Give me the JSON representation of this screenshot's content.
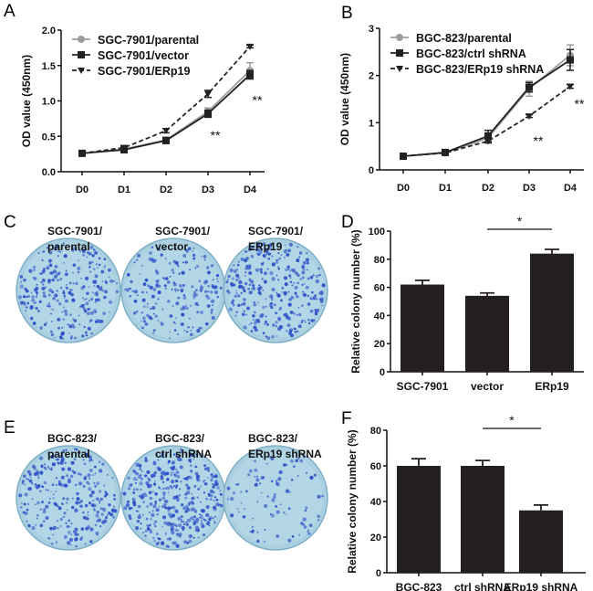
{
  "panels": {
    "a": "A",
    "b": "B",
    "c": "C",
    "d": "D",
    "e": "E",
    "f": "F"
  },
  "plates_c": [
    {
      "line1": "SGC-7901/",
      "line2": "parental"
    },
    {
      "line1": "SGC-7901/",
      "line2": "vector"
    },
    {
      "line1": "SGC-7901/",
      "line2": "ERp19"
    }
  ],
  "plates_e": [
    {
      "line1": "BGC-823/",
      "line2": "parental"
    },
    {
      "line1": "BGC-823/",
      "line2": "ctrl shRNA"
    },
    {
      "line1": "BGC-823/",
      "line2": "ERp19 shRNA"
    }
  ],
  "colors": {
    "bar": "#231f20",
    "gray": "#9d9d9d",
    "black": "#222222",
    "plate": "#a9cfe0",
    "colony": "#2f52c8"
  },
  "chart_data": [
    {
      "type": "line",
      "panel": "A",
      "ylabel": "OD value (450nm)",
      "ylim": [
        0,
        2.0
      ],
      "yticks": [
        "0.0",
        "0.5",
        "1.0",
        "1.5",
        "2.0"
      ],
      "categories": [
        "D0",
        "D1",
        "D2",
        "D3",
        "D4"
      ],
      "legend": "top-left",
      "grid": false,
      "series": [
        {
          "name": "SGC-7901/parental",
          "values": [
            0.26,
            0.32,
            0.45,
            0.85,
            1.43
          ],
          "err": [
            0.02,
            0.03,
            0.04,
            0.05,
            0.11
          ],
          "style": "gray-circle"
        },
        {
          "name": "SGC-7901/vector",
          "values": [
            0.26,
            0.31,
            0.44,
            0.82,
            1.37
          ],
          "err": [
            0.02,
            0.03,
            0.04,
            0.05,
            0.06
          ],
          "style": "black-square"
        },
        {
          "name": "SGC-7901/ERp19",
          "values": [
            0.26,
            0.34,
            0.58,
            1.1,
            1.77
          ],
          "err": [
            0.02,
            0.03,
            0.03,
            0.05,
            0.02
          ],
          "style": "dashed-triangle"
        }
      ],
      "annotations": [
        {
          "text": "**",
          "at": "D3"
        },
        {
          "text": "**",
          "at": "D4"
        }
      ]
    },
    {
      "type": "line",
      "panel": "B",
      "ylabel": "OD value (450nm)",
      "ylim": [
        0,
        3
      ],
      "yticks": [
        "0",
        "1",
        "2",
        "3"
      ],
      "categories": [
        "D0",
        "D1",
        "D2",
        "D3",
        "D4"
      ],
      "legend": "top-left",
      "grid": false,
      "series": [
        {
          "name": "BGC-823/parental",
          "values": [
            0.29,
            0.36,
            0.68,
            1.72,
            2.43
          ],
          "err": [
            0.02,
            0.03,
            0.08,
            0.16,
            0.22
          ],
          "style": "gray-circle"
        },
        {
          "name": "BGC-823/ctrl shRNA",
          "values": [
            0.29,
            0.37,
            0.72,
            1.75,
            2.33
          ],
          "err": [
            0.02,
            0.03,
            0.12,
            0.1,
            0.22
          ],
          "style": "black-square"
        },
        {
          "name": "BGC-823/ERp19 shRNA",
          "values": [
            0.29,
            0.36,
            0.61,
            1.14,
            1.77
          ],
          "err": [
            0.02,
            0.02,
            0.04,
            0.03,
            0.04
          ],
          "style": "dashed-triangle"
        }
      ],
      "annotations": [
        {
          "text": "**",
          "at": "D3"
        },
        {
          "text": "**",
          "at": "D4"
        }
      ]
    },
    {
      "type": "bar",
      "panel": "D",
      "ylabel": "Relative colony number (%)",
      "ylim": [
        0,
        100
      ],
      "yticks": [
        "0",
        "20",
        "40",
        "60",
        "80",
        "100"
      ],
      "categories": [
        "SGC-7901",
        "vector",
        "ERp19"
      ],
      "values": [
        62,
        54,
        84
      ],
      "err": [
        3,
        2,
        3
      ],
      "significance": {
        "text": "*",
        "from": "vector",
        "to": "ERp19"
      }
    },
    {
      "type": "bar",
      "panel": "F",
      "ylabel": "Relative colony number (%)",
      "ylim": [
        0,
        80
      ],
      "yticks": [
        "0",
        "20",
        "40",
        "60",
        "80"
      ],
      "categories": [
        "BGC-823",
        "ctrl shRNA",
        "ERp19 shRNA"
      ],
      "values": [
        60,
        60,
        35
      ],
      "err": [
        4,
        3,
        3
      ],
      "significance": {
        "text": "*",
        "from": "ctrl shRNA",
        "to": "ERp19 shRNA"
      }
    }
  ]
}
